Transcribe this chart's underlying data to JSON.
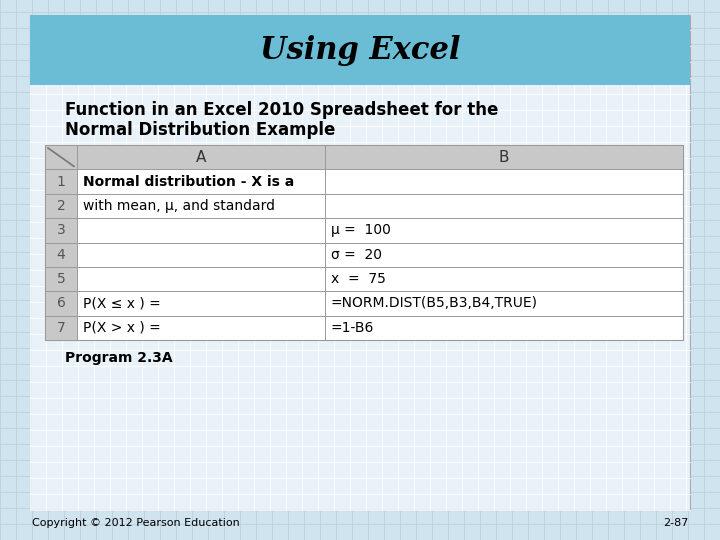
{
  "title": "Using Excel",
  "subtitle_line1": "Function in an Excel 2010 Spreadsheet for the",
  "subtitle_line2": "Normal Distribution Example",
  "title_bg_color": "#6BBDD6",
  "outer_bg_color": "#D0E4F0",
  "table_header_bg": "#C8C8C8",
  "row_nums": [
    "1",
    "2",
    "3",
    "4",
    "5",
    "6",
    "7"
  ],
  "col_a_content": [
    "Normal distribution - X is a",
    "with mean, μ, and standard",
    "",
    "",
    "",
    "P(X ≤ x ) =",
    "P(X > x ) ="
  ],
  "col_a_bold": [
    true,
    false,
    false,
    false,
    false,
    false,
    false
  ],
  "col_a_align": [
    "left",
    "left",
    "right",
    "right",
    "right",
    "left",
    "left"
  ],
  "col_b_content": [
    "",
    "",
    "μ =  100",
    "σ =  20",
    "x  =  75",
    "=NORM.DIST(B5,B3,B4,TRUE)",
    "=1-B6"
  ],
  "program_label": "Program 2.3A",
  "copyright": "Copyright © 2012 Pearson Education",
  "page_num": "2-87",
  "grid_color": "#B8CDD8",
  "grid_step": 16
}
